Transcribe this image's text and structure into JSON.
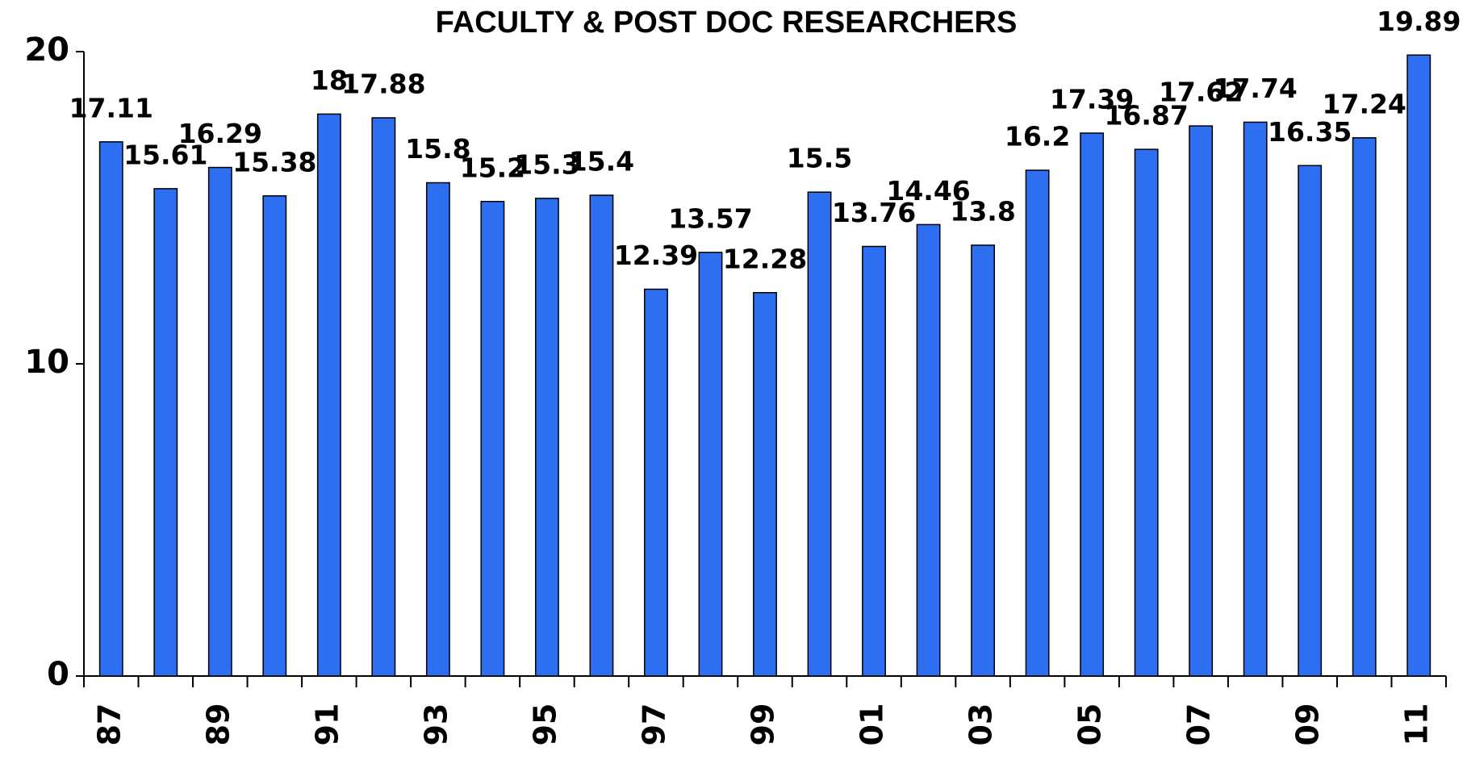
{
  "chart_data": {
    "type": "bar",
    "title": "FACULTY & POST DOC RESEARCHERS",
    "categories": [
      "87",
      null,
      "89",
      null,
      "91",
      null,
      "93",
      null,
      "95",
      null,
      "97",
      null,
      "99",
      null,
      "01",
      null,
      "03",
      null,
      "05",
      null,
      "07",
      null,
      "09",
      null,
      "11"
    ],
    "values": [
      17.11,
      15.61,
      16.29,
      15.38,
      18,
      17.88,
      15.8,
      15.2,
      15.3,
      15.4,
      12.39,
      13.57,
      12.28,
      15.5,
      13.76,
      14.46,
      13.8,
      16.2,
      17.39,
      16.87,
      17.62,
      17.74,
      16.35,
      17.24,
      19.89
    ],
    "color": "#2e6ff2",
    "ylim": [
      0,
      20
    ],
    "yticks": [
      0,
      10,
      20
    ],
    "grid": false
  }
}
